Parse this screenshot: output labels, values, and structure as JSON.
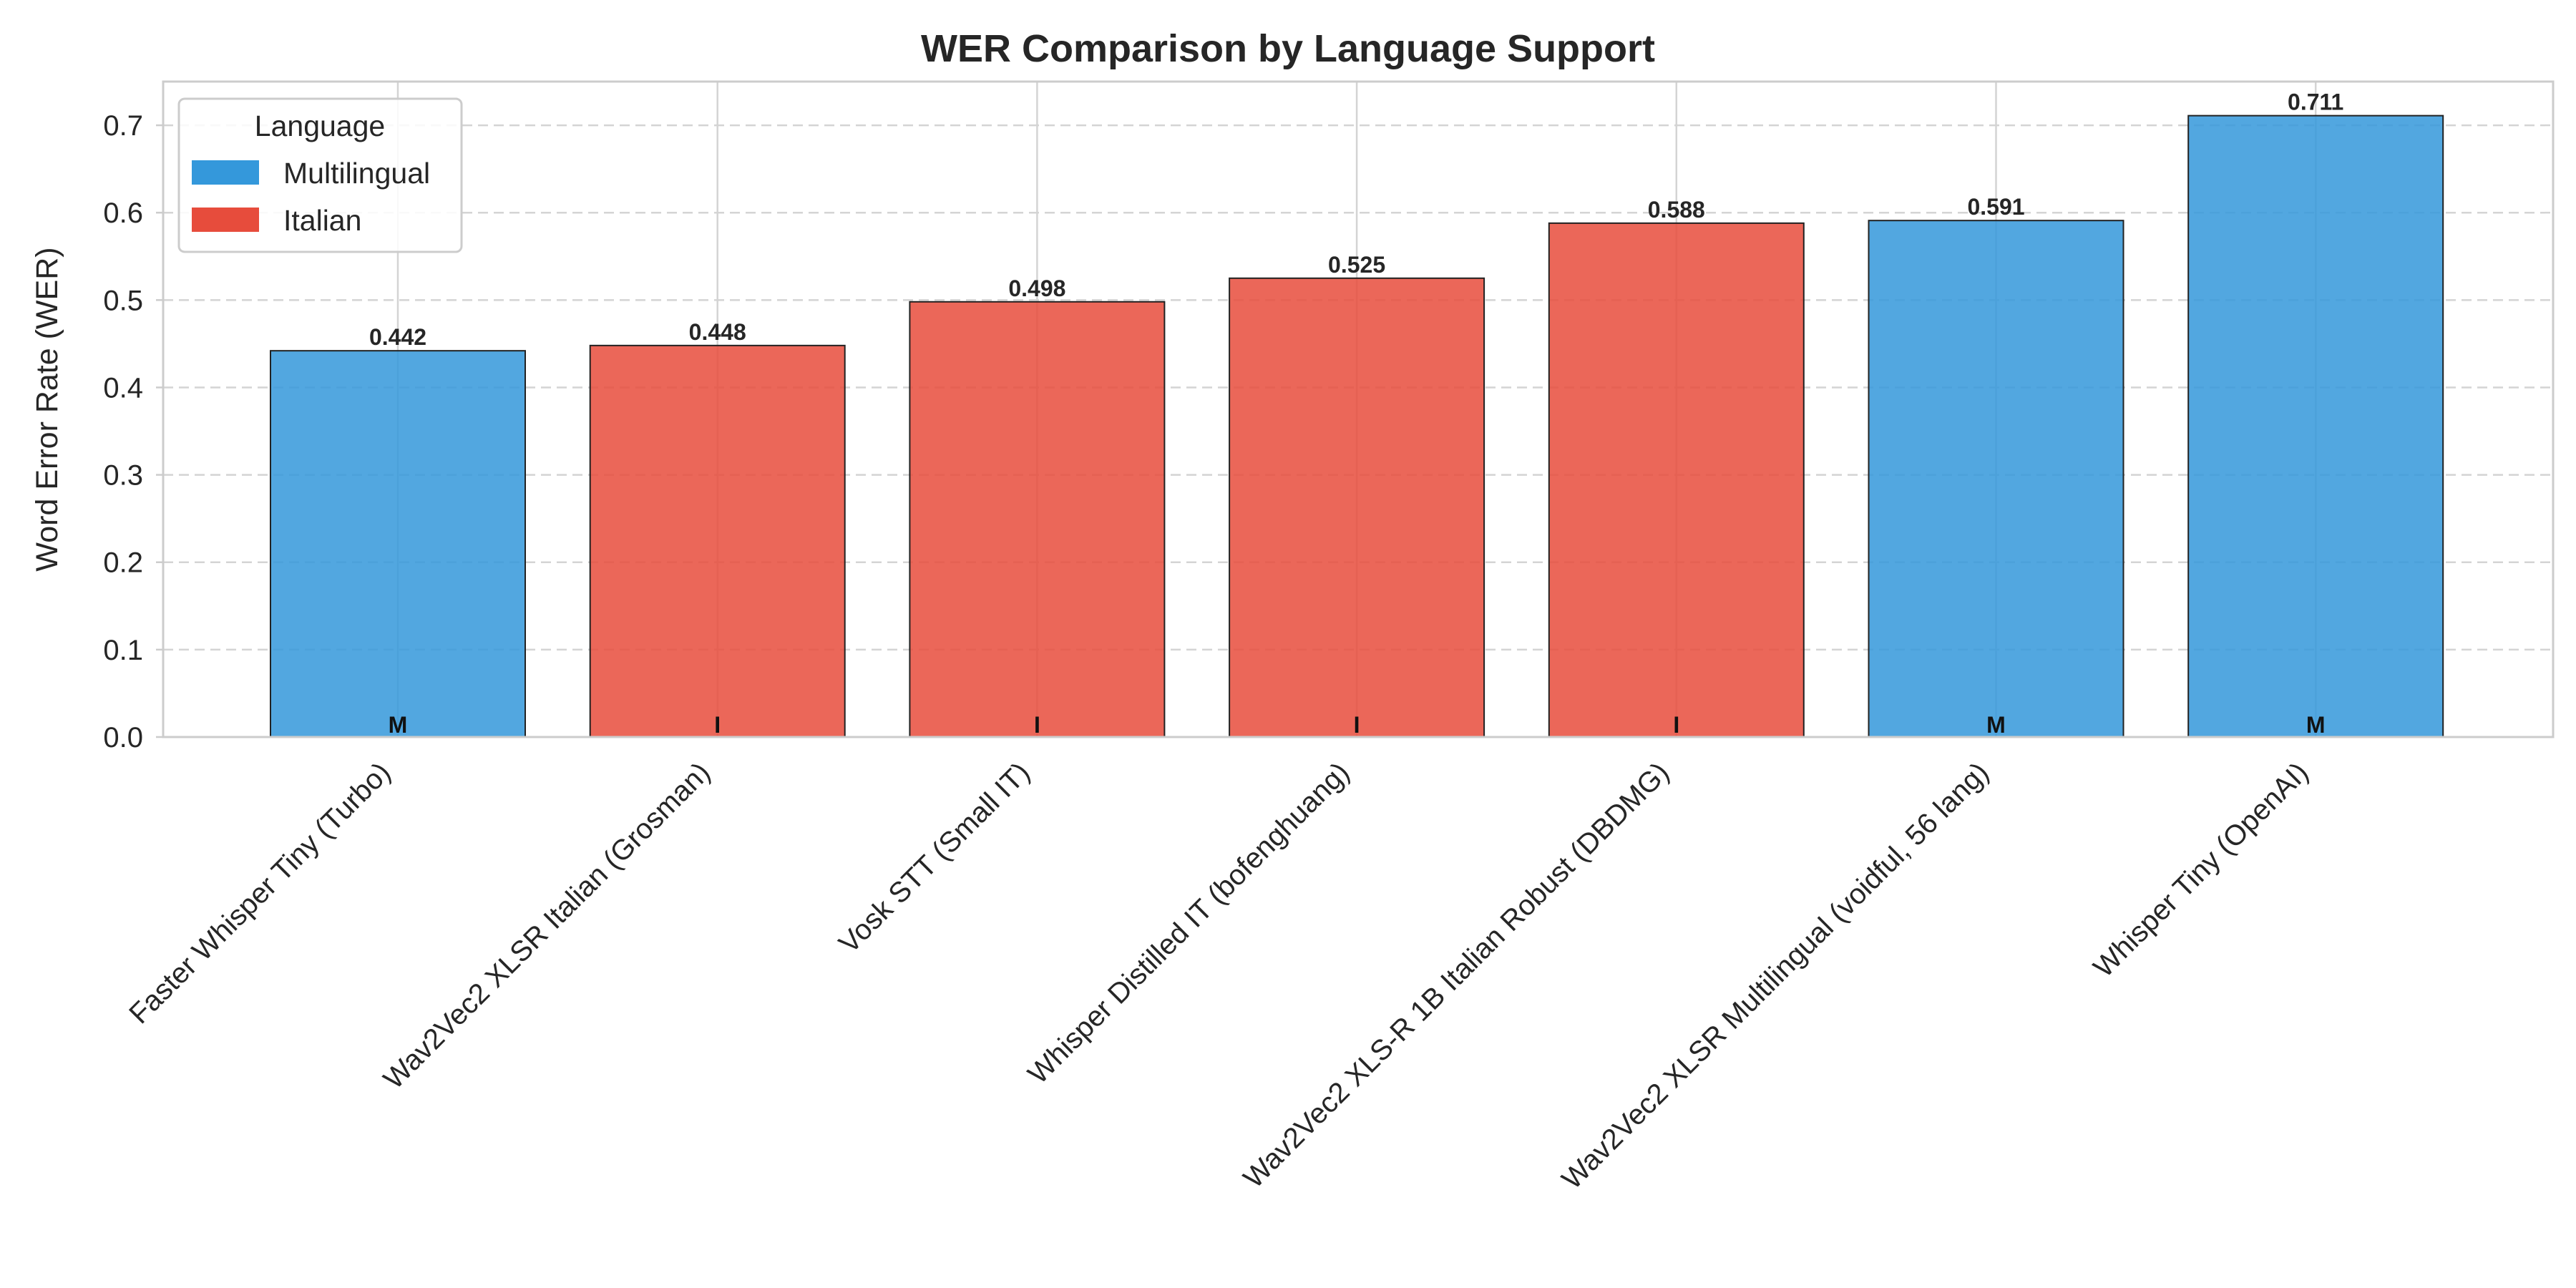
{
  "chart_data": {
    "type": "bar",
    "title": "WER Comparison by Language Support",
    "xlabel": "",
    "ylabel": "Word Error Rate (WER)",
    "ylim": [
      0,
      0.75
    ],
    "yticks": [
      "0.0",
      "0.1",
      "0.2",
      "0.3",
      "0.4",
      "0.5",
      "0.6",
      "0.7"
    ],
    "grid": true,
    "legend": {
      "title": "Language",
      "placement": "top-left",
      "entries": [
        {
          "name": "Multilingual",
          "color": "#3498db"
        },
        {
          "name": "Italian",
          "color": "#e74c3c"
        }
      ]
    },
    "categories": [
      "Faster Whisper Tiny (Turbo)",
      "Wav2Vec2 XLSR Italian (Grosman)",
      "Vosk STT (Small IT)",
      "Whisper Distilled IT (bofenghuang)",
      "Wav2Vec2 XLS-R 1B Italian Robust (DBDMG)",
      "Wav2Vec2 XLSR Multilingual (voidful, 56 lang)",
      "Whisper Tiny (OpenAI)"
    ],
    "values": [
      0.442,
      0.448,
      0.498,
      0.525,
      0.588,
      0.591,
      0.711
    ],
    "value_labels": [
      "0.442",
      "0.448",
      "0.498",
      "0.525",
      "0.588",
      "0.591",
      "0.711"
    ],
    "language_codes": [
      "M",
      "I",
      "I",
      "I",
      "I",
      "M",
      "M"
    ],
    "language_groups": [
      "Multilingual",
      "Italian",
      "Italian",
      "Italian",
      "Italian",
      "Multilingual",
      "Multilingual"
    ]
  }
}
